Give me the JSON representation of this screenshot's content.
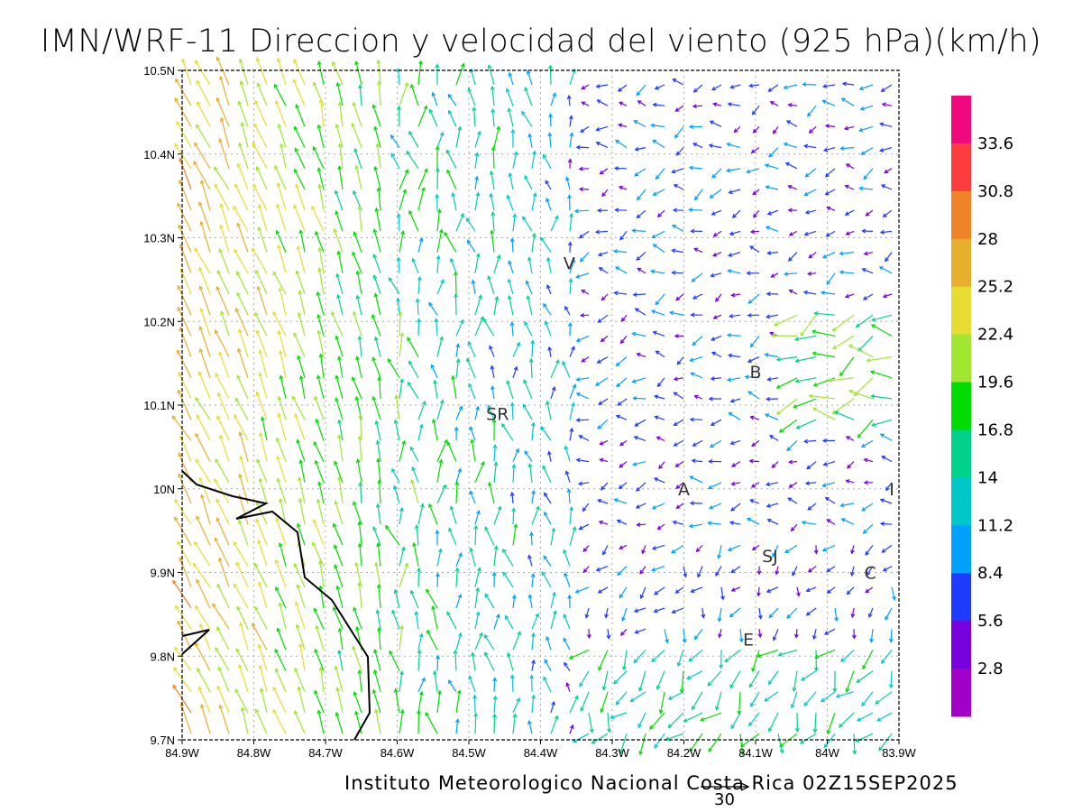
{
  "title": "IMN/WRF-11 Direccion y velocidad del viento (925 hPa)(km/h)",
  "footer": "Instituto Meteorologico Nacional Costa Rica 02Z15SEP2025",
  "reference_vector": {
    "label": "30",
    "value": 30
  },
  "map": {
    "lon_range": [
      -84.9,
      -83.9
    ],
    "lat_range": [
      9.7,
      10.5
    ],
    "x_ticks": [
      "84.9W",
      "84.8W",
      "84.7W",
      "84.6W",
      "84.5W",
      "84.4W",
      "84.3W",
      "84.2W",
      "84.1W",
      "84W",
      "83.9W"
    ],
    "y_ticks": [
      "10.5N",
      "10.4N",
      "10.3N",
      "10.2N",
      "10.1N",
      "10N",
      "9.9N",
      "9.8N",
      "9.7N"
    ],
    "locations": [
      {
        "label": "V",
        "lon": -84.36,
        "lat": 10.27
      },
      {
        "label": "B",
        "lon": -84.1,
        "lat": 10.14
      },
      {
        "label": "SR",
        "lon": -84.46,
        "lat": 10.09
      },
      {
        "label": "A",
        "lon": -84.2,
        "lat": 10.0
      },
      {
        "label": "I",
        "lon": -83.91,
        "lat": 10.0
      },
      {
        "label": "SJ",
        "lon": -84.08,
        "lat": 9.92
      },
      {
        "label": "C",
        "lon": -83.94,
        "lat": 9.9
      },
      {
        "label": "E",
        "lon": -84.11,
        "lat": 9.82
      }
    ]
  },
  "colorbar": {
    "labels": [
      "33.6",
      "30.8",
      "28",
      "25.2",
      "22.4",
      "19.6",
      "16.8",
      "14",
      "11.2",
      "8.4",
      "5.6",
      "2.8"
    ],
    "colors": [
      "#f0087f",
      "#fa3c3c",
      "#f08228",
      "#e6af2d",
      "#e6dc32",
      "#a0e632",
      "#00dc00",
      "#00d28c",
      "#00c8c8",
      "#00a0ff",
      "#1e3cff",
      "#7800dc",
      "#a000c8"
    ]
  }
}
